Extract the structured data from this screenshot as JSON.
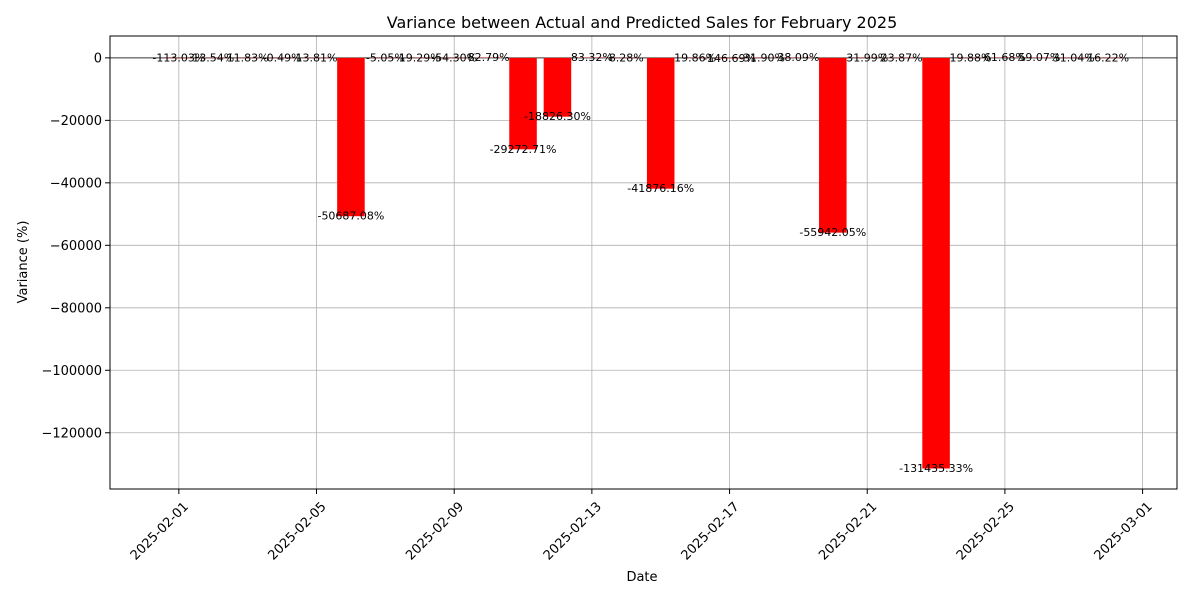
{
  "chart_data": {
    "type": "bar",
    "title": "Variance between Actual and Predicted Sales for February 2025",
    "xlabel": "Date",
    "ylabel": "Variance (%)",
    "ylim": [
      -138000,
      7000
    ],
    "xlim": [
      "2025-01-30",
      "2025-03-02"
    ],
    "grid": true,
    "bar_color": "#ff0000",
    "x_ticks": [
      "2025-02-01",
      "2025-02-05",
      "2025-02-09",
      "2025-02-13",
      "2025-02-17",
      "2025-02-21",
      "2025-02-25",
      "2025-03-01"
    ],
    "y_ticks": [
      0,
      -20000,
      -40000,
      -60000,
      -80000,
      -100000,
      -120000
    ],
    "y_tick_labels": [
      "0",
      "−20000",
      "−40000",
      "−60000",
      "−80000",
      "−100000",
      "−120000"
    ],
    "points": [
      {
        "date": "2025-02-01",
        "value": -113.03,
        "label": "-113.03%"
      },
      {
        "date": "2025-02-02",
        "value": 13.54,
        "label": "13.54%"
      },
      {
        "date": "2025-02-03",
        "value": 11.83,
        "label": "11.83%"
      },
      {
        "date": "2025-02-04",
        "value": -0.49,
        "label": "-0.49%"
      },
      {
        "date": "2025-02-05",
        "value": 13.81,
        "label": "13.81%"
      },
      {
        "date": "2025-02-06",
        "value": -50687.08,
        "label": "-50687.08%"
      },
      {
        "date": "2025-02-07",
        "value": -5.05,
        "label": "-5.05%"
      },
      {
        "date": "2025-02-08",
        "value": 19.29,
        "label": "19.29%"
      },
      {
        "date": "2025-02-09",
        "value": -54.3,
        "label": "-54.30%"
      },
      {
        "date": "2025-02-10",
        "value": 82.79,
        "label": "82.79%"
      },
      {
        "date": "2025-02-11",
        "value": -29272.71,
        "label": "-29272.71%"
      },
      {
        "date": "2025-02-12",
        "value": -18826.3,
        "label": "-18826.30%"
      },
      {
        "date": "2025-02-13",
        "value": 83.32,
        "label": "83.32%"
      },
      {
        "date": "2025-02-14",
        "value": 8.28,
        "label": "8.28%"
      },
      {
        "date": "2025-02-15",
        "value": -41876.16,
        "label": "-41876.16%"
      },
      {
        "date": "2025-02-16",
        "value": 19.86,
        "label": "19.86%"
      },
      {
        "date": "2025-02-17",
        "value": -146.69,
        "label": "-146.69%"
      },
      {
        "date": "2025-02-18",
        "value": 31.9,
        "label": "31.90%"
      },
      {
        "date": "2025-02-19",
        "value": 38.09,
        "label": "38.09%"
      },
      {
        "date": "2025-02-20",
        "value": -55942.05,
        "label": "-55942.05%"
      },
      {
        "date": "2025-02-21",
        "value": 31.99,
        "label": "31.99%"
      },
      {
        "date": "2025-02-22",
        "value": 23.87,
        "label": "23.87%"
      },
      {
        "date": "2025-02-23",
        "value": -131435.33,
        "label": "-131435.33%"
      },
      {
        "date": "2025-02-24",
        "value": 19.88,
        "label": "19.88%"
      },
      {
        "date": "2025-02-25",
        "value": 61.68,
        "label": "61.68%"
      },
      {
        "date": "2025-02-26",
        "value": 59.07,
        "label": "59.07%"
      },
      {
        "date": "2025-02-27",
        "value": 31.04,
        "label": "31.04%"
      },
      {
        "date": "2025-02-28",
        "value": 16.22,
        "label": "16.22%"
      }
    ]
  }
}
